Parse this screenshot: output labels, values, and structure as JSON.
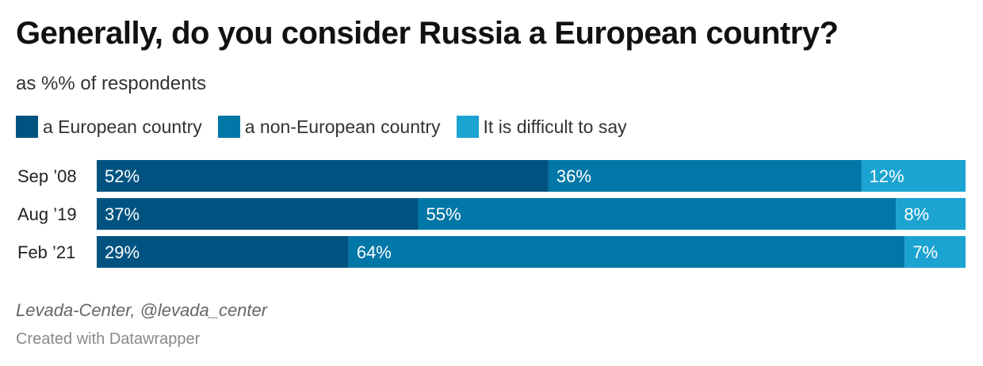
{
  "title": "Generally, do you consider Russia a European country?",
  "subtitle": "as %% of respondents",
  "colors": {
    "european": "#005380",
    "non_european": "#0077a6",
    "difficult": "#1ba3d1"
  },
  "legend": [
    {
      "label": "a European country",
      "color": "#005380"
    },
    {
      "label": "a non-European country",
      "color": "#0077a6"
    },
    {
      "label": "It is difficult to say",
      "color": "#1ba3d1"
    }
  ],
  "chart_data": {
    "type": "bar",
    "orientation": "horizontal",
    "stacked": true,
    "categories": [
      "Sep ’08",
      "Aug ’19",
      "Feb ’21"
    ],
    "series": [
      {
        "name": "a European country",
        "values": [
          52,
          37,
          29
        ],
        "color": "#005380"
      },
      {
        "name": "a non-European country",
        "values": [
          36,
          55,
          64
        ],
        "color": "#0077a6"
      },
      {
        "name": "It is difficult to say",
        "values": [
          12,
          8,
          7
        ],
        "color": "#1ba3d1"
      }
    ],
    "title": "Generally, do you consider Russia a European country?",
    "subtitle": "as %% of respondents",
    "value_suffix": "%",
    "xlim": [
      0,
      100
    ],
    "grid": false,
    "legend_position": "top-left"
  },
  "footer": {
    "source": "Levada-Center, @levada_center",
    "credit": "Created with Datawrapper"
  }
}
